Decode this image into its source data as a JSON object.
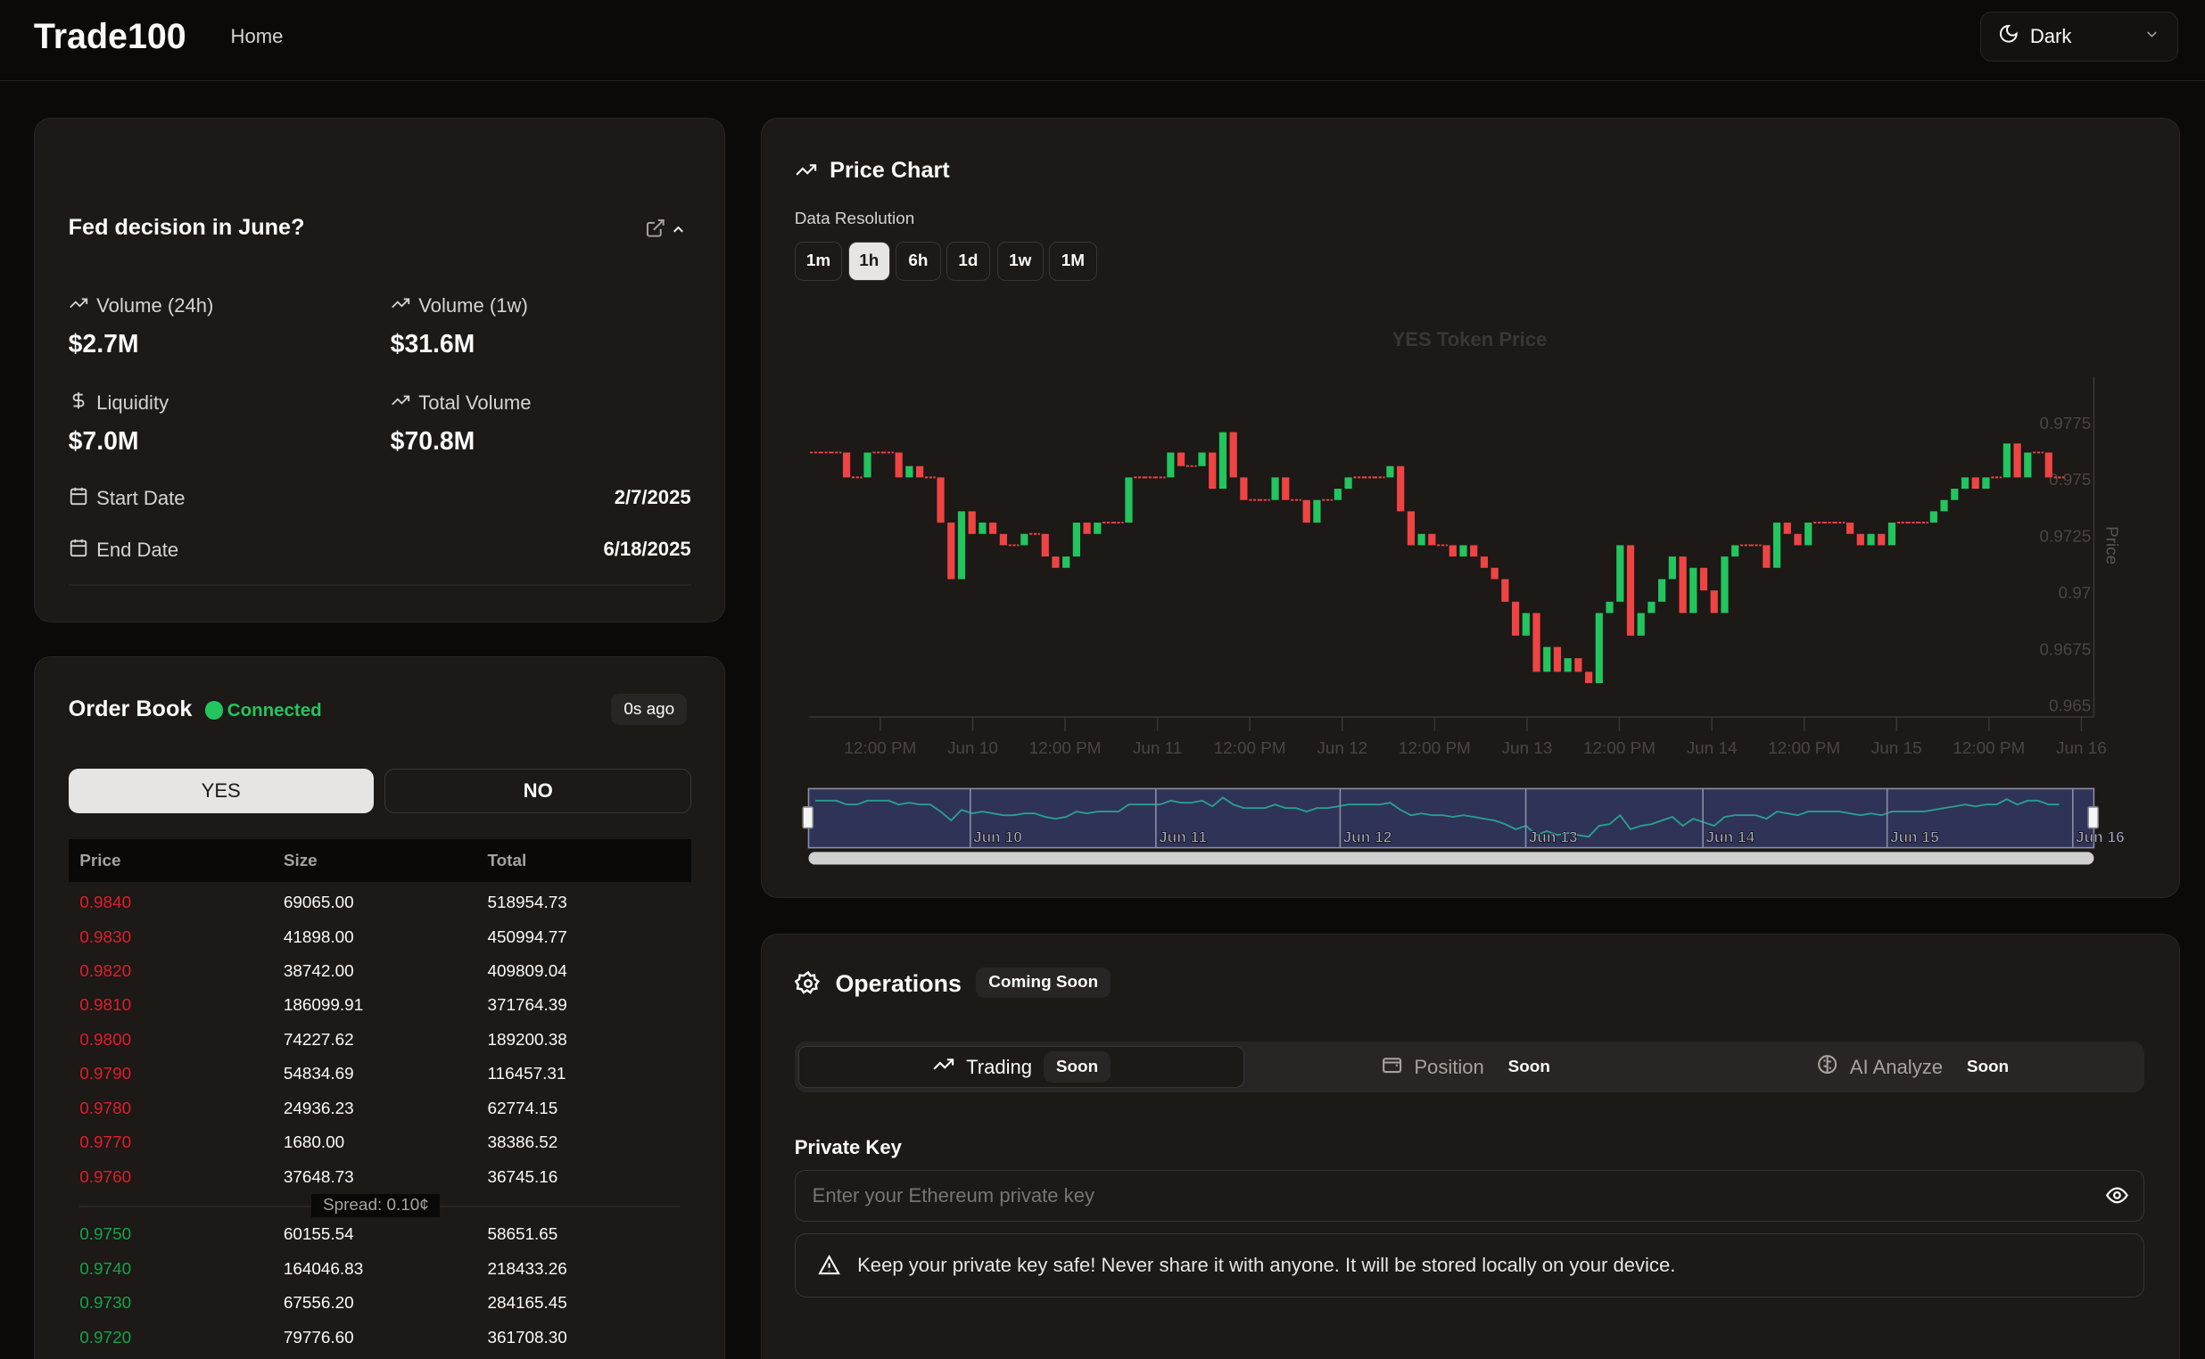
{
  "header": {
    "logo": "Trade100",
    "nav_home": "Home",
    "theme": "Dark",
    "icons": {
      "theme": "moon-icon",
      "dropdown": "chevron-down-icon"
    }
  },
  "market": {
    "title": "Fed decision in June?",
    "stats": [
      {
        "label": "Volume (24h)",
        "value": "$2.7M",
        "icon": "trending-up-icon"
      },
      {
        "label": "Volume (1w)",
        "value": "$31.6M",
        "icon": "trending-up-icon"
      },
      {
        "label": "Liquidity",
        "value": "$7.0M",
        "icon": "dollar-icon"
      },
      {
        "label": "Total Volume",
        "value": "$70.8M",
        "icon": "trending-up-icon"
      }
    ],
    "start_label": "Start Date",
    "start_value": "2/7/2025",
    "end_label": "End Date",
    "end_value": "6/18/2025"
  },
  "orderbook": {
    "title": "Order Book",
    "status": "Connected",
    "updated": "0s ago",
    "yes": "YES",
    "no": "NO",
    "columns": [
      "Price",
      "Size",
      "Total"
    ],
    "asks": [
      [
        "0.9840",
        "69065.00",
        "518954.73"
      ],
      [
        "0.9830",
        "41898.00",
        "450994.77"
      ],
      [
        "0.9820",
        "38742.00",
        "409809.04"
      ],
      [
        "0.9810",
        "186099.91",
        "371764.39"
      ],
      [
        "0.9800",
        "74227.62",
        "189200.38"
      ],
      [
        "0.9790",
        "54834.69",
        "116457.31"
      ],
      [
        "0.9780",
        "24936.23",
        "62774.15"
      ],
      [
        "0.9770",
        "1680.00",
        "38386.52"
      ],
      [
        "0.9760",
        "37648.73",
        "36745.16"
      ]
    ],
    "spread": "Spread: 0.10¢",
    "bids": [
      [
        "0.9750",
        "60155.54",
        "58651.65"
      ],
      [
        "0.9740",
        "164046.83",
        "218433.26"
      ],
      [
        "0.9730",
        "67556.20",
        "284165.45"
      ],
      [
        "0.9720",
        "79776.60",
        "361708.30"
      ]
    ],
    "colors": {
      "ask": "#e11d2a",
      "bid": "#16a34a",
      "status": "#22c55e"
    }
  },
  "price_chart": {
    "title": "Price Chart",
    "resolution_label": "Data Resolution",
    "resolutions": [
      "1m",
      "1h",
      "6h",
      "1d",
      "1w",
      "1M"
    ],
    "selected": "1h"
  },
  "chart_data": {
    "type": "candlestick",
    "title": "YES Token Price",
    "ylabel": "Price",
    "ylim": [
      0.965,
      0.9775
    ],
    "yticks": [
      "0.965",
      "0.9675",
      "0.97",
      "0.9725",
      "0.975",
      "0.9775"
    ],
    "xrange": [
      "2025-06-09T03:00",
      "2025-06-16T00:00"
    ],
    "xticks": [
      "12:00 PM",
      "Jun 10",
      "12:00 PM",
      "Jun 11",
      "12:00 PM",
      "Jun 12",
      "12:00 PM",
      "Jun 13",
      "12:00 PM",
      "Jun 14",
      "12:00 PM",
      "Jun 15",
      "12:00 PM",
      "Jun 16"
    ],
    "navigator_labels": [
      "Jun 10",
      "Jun 11",
      "Jun 12",
      "Jun 13",
      "Jun 14",
      "Jun 15",
      "Jun 16"
    ],
    "first_open": 0.9762,
    "closes": [
      0.9762,
      0.9762,
      0.9762,
      0.9751,
      0.9751,
      0.9762,
      0.9762,
      0.9762,
      0.9751,
      0.9756,
      0.9751,
      0.9751,
      0.9731,
      0.9706,
      0.9736,
      0.9726,
      0.9731,
      0.9726,
      0.9721,
      0.9721,
      0.9726,
      0.9726,
      0.9716,
      0.9711,
      0.9716,
      0.9731,
      0.9726,
      0.9731,
      0.9731,
      0.9731,
      0.9751,
      0.9751,
      0.9751,
      0.9751,
      0.9762,
      0.9756,
      0.9756,
      0.9762,
      0.9746,
      0.9771,
      0.9751,
      0.9741,
      0.9741,
      0.9741,
      0.9751,
      0.9741,
      0.9741,
      0.9731,
      0.9741,
      0.9741,
      0.9746,
      0.9751,
      0.9751,
      0.9751,
      0.9751,
      0.9756,
      0.9736,
      0.9721,
      0.9726,
      0.9721,
      0.9721,
      0.9716,
      0.9721,
      0.9716,
      0.9711,
      0.9706,
      0.9696,
      0.9681,
      0.9691,
      0.9665,
      0.9676,
      0.9665,
      0.9671,
      0.9665,
      0.966,
      0.9691,
      0.9696,
      0.9721,
      0.9681,
      0.9691,
      0.9696,
      0.9706,
      0.9716,
      0.9691,
      0.9711,
      0.9701,
      0.9691,
      0.9716,
      0.9721,
      0.9721,
      0.9721,
      0.9711,
      0.9731,
      0.9726,
      0.9721,
      0.9731,
      0.9731,
      0.9731,
      0.9731,
      0.9726,
      0.9721,
      0.9726,
      0.9721,
      0.9731,
      0.9731,
      0.9731,
      0.9731,
      0.9736,
      0.9741,
      0.9746,
      0.9751,
      0.9746,
      0.9751,
      0.9751,
      0.9766,
      0.9751,
      0.9762,
      0.9762,
      0.9751,
      0.9751
    ],
    "colors": {
      "up": "#22c55e",
      "down": "#ef4444",
      "navigator": "#2a9d8f"
    }
  },
  "operations": {
    "title": "Operations",
    "badge": "Coming Soon",
    "tabs": [
      {
        "label": "Trading",
        "badge": "Soon",
        "icon": "trending-up-icon"
      },
      {
        "label": "Position",
        "badge": "Soon",
        "icon": "wallet-icon"
      },
      {
        "label": "AI Analyze",
        "badge": "Soon",
        "icon": "brain-icon"
      }
    ],
    "key_label": "Private Key",
    "key_placeholder": "Enter your Ethereum private key",
    "warning": "Keep your private key safe! Never share it with anyone. It will be stored locally on your device."
  }
}
